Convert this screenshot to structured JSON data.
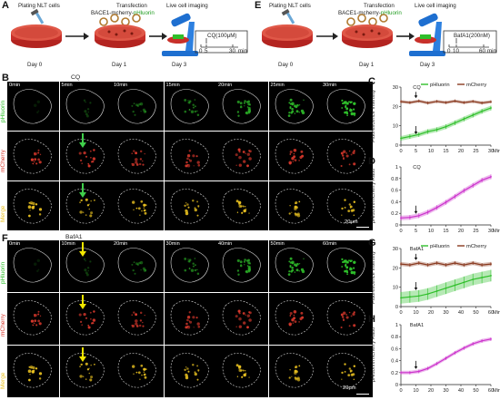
{
  "schematic_a": {
    "panel": "A",
    "stage_labels": [
      "Plating NLT cells",
      "Transfection",
      "Live cell imaging"
    ],
    "construct_prefix": "BACE1-mcherry-",
    "construct_green": "pHluorin",
    "day_labels": [
      "Day 0",
      "Day 1",
      "Day 3"
    ],
    "treatment": "CQ(100μM)",
    "timeline_ticks": [
      "0",
      "5",
      "30"
    ],
    "timeline_unit": "min"
  },
  "schematic_e": {
    "panel": "E",
    "stage_labels": [
      "Plating NLT cells",
      "Transfection",
      "Live cell imaging"
    ],
    "construct_prefix": "BACE1-mcherry-",
    "construct_green": "pHluorin",
    "day_labels": [
      "Day 0",
      "Day 1",
      "Day 3"
    ],
    "treatment": "BafA1(200nM)",
    "timeline_ticks": [
      "0",
      "10",
      "60"
    ],
    "timeline_unit": "min"
  },
  "panel_b": {
    "panel": "B",
    "time_labels": [
      "0min",
      "5min",
      "10min",
      "15min",
      "20min",
      "25min",
      "30min"
    ],
    "drug_label": "CQ",
    "row_labels": [
      "pHluorin",
      "mCherry",
      "Merge"
    ],
    "scale_bar": "20μm"
  },
  "panel_f": {
    "panel": "F",
    "time_labels": [
      "0min",
      "10min",
      "20min",
      "30min",
      "40min",
      "50min",
      "60min"
    ],
    "drug_label": "BafA1",
    "row_labels": [
      "pHluorin",
      "mCherry",
      "Merge"
    ],
    "scale_bar": "20μm"
  },
  "colors": {
    "green_channel": "#2fbf2a",
    "red_channel": "#c8302a",
    "merge_yellow": "#e8d020",
    "ratio_magenta": "#cc33cc",
    "arrow_yellow": "#f2e600",
    "arrow_green": "#3fd04a"
  },
  "chart_data": [
    {
      "panel": "C",
      "type": "line",
      "ylabel": "Fluorescence Intensity",
      "xlabel": "",
      "x_unit": "Min",
      "xlim": [
        0,
        30
      ],
      "xticks": [
        0,
        5,
        10,
        15,
        20,
        25,
        30
      ],
      "ylim": [
        0,
        30
      ],
      "yticks": [
        0,
        10,
        20,
        30
      ],
      "annotation": "CQ",
      "annotation_x": 5,
      "legend_position": "top",
      "series": [
        {
          "name": "pHluorin",
          "color": "#2fbf2a",
          "x": [
            0,
            3,
            6,
            9,
            12,
            15,
            18,
            21,
            24,
            27,
            30
          ],
          "values": [
            3.5,
            4.5,
            5.5,
            7,
            8,
            9.5,
            11.5,
            13.5,
            15.5,
            17.5,
            19.2
          ],
          "error": 1.2
        },
        {
          "name": "mCherry",
          "color": "#8a3a20",
          "x": [
            0,
            3,
            6,
            9,
            12,
            15,
            18,
            21,
            24,
            27,
            30
          ],
          "values": [
            22.5,
            22,
            22.8,
            21.8,
            22.6,
            22,
            22.8,
            22,
            22.6,
            21.8,
            22.4
          ],
          "error": 0.8
        }
      ]
    },
    {
      "panel": "D",
      "type": "line",
      "ylabel": "pHluorin/mCherry Ratio",
      "xlabel": "",
      "x_unit": "Min",
      "xlim": [
        0,
        30
      ],
      "xticks": [
        0,
        5,
        10,
        15,
        20,
        25,
        30
      ],
      "ylim": [
        0,
        1.0
      ],
      "yticks": [
        0,
        0.2,
        0.4,
        0.6,
        0.8,
        1.0
      ],
      "annotation": "CQ",
      "annotation_x": 5,
      "series": [
        {
          "name": "",
          "color": "#cc33cc",
          "x": [
            0,
            3,
            6,
            9,
            12,
            15,
            18,
            21,
            24,
            27,
            30
          ],
          "values": [
            0.12,
            0.13,
            0.16,
            0.22,
            0.3,
            0.39,
            0.49,
            0.59,
            0.68,
            0.77,
            0.83
          ],
          "error": 0.04
        }
      ]
    },
    {
      "panel": "G",
      "type": "line",
      "ylabel": "Fluorescence Intensity",
      "xlabel": "",
      "x_unit": "Min",
      "xlim": [
        0,
        60
      ],
      "xticks": [
        0,
        10,
        20,
        30,
        40,
        50,
        60
      ],
      "ylim": [
        0,
        30
      ],
      "yticks": [
        0,
        10,
        20,
        30
      ],
      "annotation": "BafA1",
      "annotation_x": 10,
      "legend_position": "top",
      "series": [
        {
          "name": "pHluorin",
          "color": "#2fbf2a",
          "x": [
            0,
            6,
            12,
            18,
            24,
            30,
            36,
            42,
            48,
            54,
            60
          ],
          "values": [
            4.5,
            5,
            5.5,
            6.5,
            8,
            9.5,
            11,
            12.5,
            14,
            15,
            16
          ],
          "error": 3.0
        },
        {
          "name": "mCherry",
          "color": "#8a3a20",
          "x": [
            0,
            6,
            12,
            18,
            24,
            30,
            36,
            42,
            48,
            54,
            60
          ],
          "values": [
            22,
            21.5,
            22.5,
            21.5,
            22.5,
            21.5,
            22.5,
            21.5,
            22.5,
            21.5,
            22
          ],
          "error": 1.0
        }
      ]
    },
    {
      "panel": "H",
      "type": "line",
      "ylabel": "pHluorin/mCherry Ratio",
      "xlabel": "",
      "x_unit": "Min",
      "xlim": [
        0,
        60
      ],
      "xticks": [
        0,
        10,
        20,
        30,
        40,
        50,
        60
      ],
      "ylim": [
        0,
        1.0
      ],
      "yticks": [
        0,
        0.2,
        0.4,
        0.6,
        0.8,
        1.0
      ],
      "annotation": "BafA1",
      "annotation_x": 10,
      "series": [
        {
          "name": "",
          "color": "#cc33cc",
          "x": [
            0,
            6,
            12,
            18,
            24,
            30,
            36,
            42,
            48,
            54,
            60
          ],
          "values": [
            0.2,
            0.2,
            0.22,
            0.27,
            0.35,
            0.44,
            0.53,
            0.61,
            0.68,
            0.73,
            0.76
          ],
          "error": 0.03
        }
      ]
    }
  ]
}
